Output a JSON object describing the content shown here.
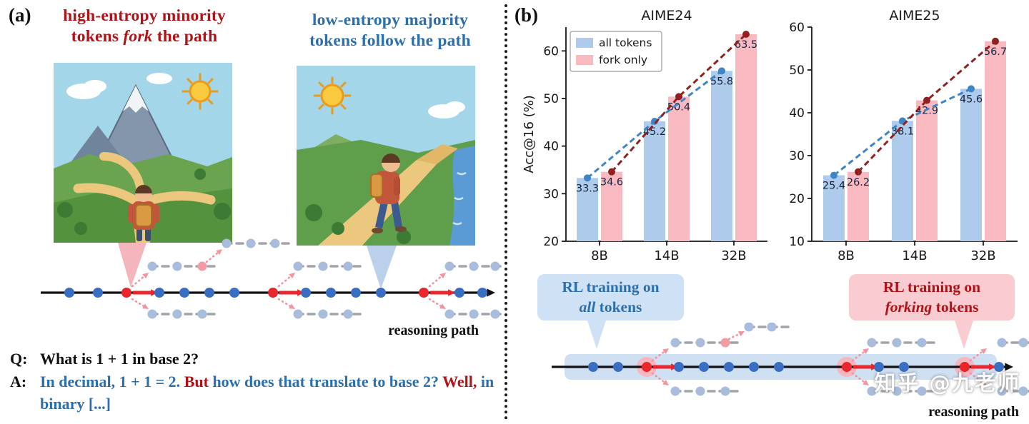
{
  "colors": {
    "red_text": "#b01217",
    "blue_text": "#2c6fad",
    "bar_blue": "#aecbeb",
    "bar_pink": "#f9b9c1",
    "trend_blue": "#3d85c8",
    "trend_red": "#8f2120",
    "token_blue": "#3a6ec2",
    "token_red": "#e8262b",
    "branch_token": "#a9bcdc",
    "highlight_blue": "#cfe0f3",
    "fork_glow": "#f8b6bf"
  },
  "panel_a": {
    "label": "(a)",
    "title_left": [
      {
        "text": "high-entropy minority"
      },
      {
        "text": "\n"
      },
      {
        "text": "tokens "
      },
      {
        "text": "fork",
        "italic": true
      },
      {
        "text": " the path"
      }
    ],
    "title_right": [
      {
        "text": "low-entropy majority"
      },
      {
        "text": "\n"
      },
      {
        "text": "tokens follow the path"
      }
    ],
    "reasoning_path_label": "reasoning path",
    "qa": {
      "q_label": "Q:",
      "q_text": "What is 1 + 1 in base 2?",
      "a_label": "A:",
      "a_segments": [
        {
          "text": "In decimal, 1 + 1 = 2. ",
          "color": "blue"
        },
        {
          "text": "But",
          "color": "red"
        },
        {
          "text": " how does that translate to base 2? ",
          "color": "blue"
        },
        {
          "text": "Well,",
          "color": "red"
        },
        {
          "text": " in binary [...]",
          "color": "blue"
        }
      ]
    }
  },
  "panel_b": {
    "label": "(b)",
    "callout_all": [
      {
        "text": "RL training on"
      },
      {
        "text": "\n"
      },
      {
        "text": "all",
        "italic": true
      },
      {
        "text": " tokens"
      }
    ],
    "callout_fork": [
      {
        "text": "RL training on"
      },
      {
        "text": "\n"
      },
      {
        "text": "forking",
        "italic": true
      },
      {
        "text": " tokens"
      }
    ],
    "reasoning_path_label": "reasoning path",
    "watermark": "知乎 @九老师"
  },
  "chart_data": [
    {
      "type": "bar",
      "title": "AIME24",
      "ylabel": "Acc@16 (%)",
      "xlabel": "",
      "categories": [
        "8B",
        "14B",
        "32B"
      ],
      "series": [
        {
          "name": "all tokens",
          "values": [
            33.3,
            45.2,
            55.8
          ],
          "color": "#aecbeb",
          "line_color": "#3d85c8"
        },
        {
          "name": "fork only",
          "values": [
            34.6,
            50.4,
            63.5
          ],
          "color": "#f9b9c1",
          "line_color": "#8f2120"
        }
      ],
      "ylim": [
        20,
        65
      ],
      "yticks": [
        20,
        30,
        40,
        50,
        60
      ],
      "legend": true,
      "legend_position": "upper left",
      "grid": false
    },
    {
      "type": "bar",
      "title": "AIME25",
      "ylabel": "",
      "xlabel": "",
      "categories": [
        "8B",
        "14B",
        "32B"
      ],
      "series": [
        {
          "name": "all tokens",
          "values": [
            25.4,
            38.1,
            45.6
          ],
          "color": "#aecbeb",
          "line_color": "#3d85c8"
        },
        {
          "name": "fork only",
          "values": [
            26.2,
            42.9,
            56.7
          ],
          "color": "#f9b9c1",
          "line_color": "#8f2120"
        }
      ],
      "ylim": [
        10,
        60
      ],
      "yticks": [
        10,
        20,
        30,
        40,
        50,
        60
      ],
      "legend": false,
      "grid": false
    }
  ]
}
